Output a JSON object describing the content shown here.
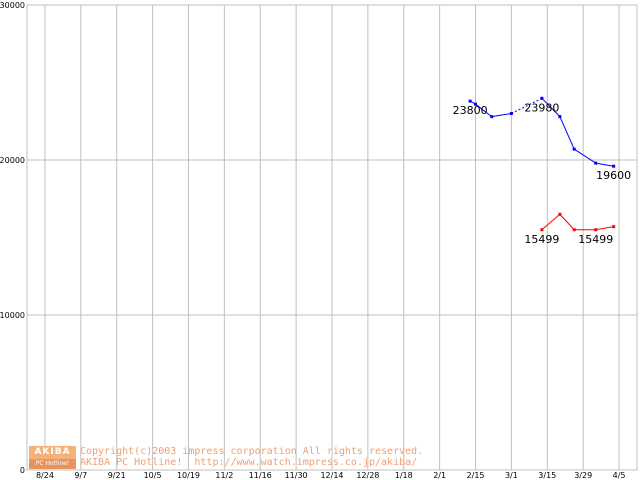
{
  "chart_data": {
    "type": "line",
    "title": "",
    "xlabel": "",
    "ylabel": "",
    "ylim": [
      0,
      30000
    ],
    "y_ticks": [
      0,
      10000,
      20000,
      30000
    ],
    "x_categories": [
      "8/24",
      "9/7",
      "9/21",
      "10/5",
      "10/19",
      "11/2",
      "11/16",
      "11/30",
      "12/14",
      "12/28",
      "1/18",
      "2/1",
      "2/15",
      "3/1",
      "3/15",
      "3/29",
      "4/5"
    ],
    "grid": true,
    "colors": {
      "blue": "#0000ff",
      "red": "#ff0000",
      "grid": "#c0c0c0"
    },
    "series": [
      {
        "color": "#0000ff",
        "points": [
          [
            11.85,
            23800
          ],
          [
            12.0,
            23600
          ],
          [
            12.45,
            22800
          ],
          [
            13.0,
            23000
          ],
          [
            13.85,
            23980
          ],
          [
            14.35,
            22800
          ],
          [
            14.75,
            20700
          ],
          [
            15.35,
            19800
          ],
          [
            15.85,
            19600
          ]
        ],
        "dashed_segments": [
          [
            3,
            4
          ]
        ]
      },
      {
        "color": "#ff0000",
        "points": [
          [
            13.85,
            15499
          ],
          [
            14.35,
            16500
          ],
          [
            14.75,
            15500
          ],
          [
            15.35,
            15499
          ],
          [
            15.85,
            15700
          ]
        ]
      }
    ],
    "data_labels": [
      {
        "text": "23800",
        "series": 0,
        "point": 0
      },
      {
        "text": "23980",
        "series": 0,
        "point": 4
      },
      {
        "text": "19600",
        "series": 0,
        "point": 8
      },
      {
        "text": "15499",
        "series": 1,
        "point": 0
      },
      {
        "text": "15499",
        "series": 1,
        "point": 3
      }
    ]
  },
  "logo": {
    "top": "AKIBA",
    "bottom": "PC Hotline!"
  },
  "copyright": {
    "line1": "Copyright(c)2003 impress corporation All rights reserved.",
    "line2": "AKIBA PC Hotline!  http://www.watch.impress.co.jp/akiba/"
  }
}
